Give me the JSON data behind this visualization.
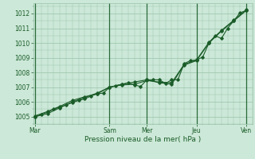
{
  "bg_color": "#cce8d8",
  "plot_bg_color": "#cce8d8",
  "grid_color": "#99c4aa",
  "line_color": "#1a5c28",
  "marker_color": "#1a5c28",
  "xlabel": "Pression niveau de la mer( hPa )",
  "xlabel_color": "#1a5c28",
  "tick_color": "#1a5c28",
  "ylim": [
    1004.5,
    1012.7
  ],
  "yticks": [
    1005,
    1006,
    1007,
    1008,
    1009,
    1010,
    1011,
    1012
  ],
  "xtick_labels": [
    "Mar",
    "Sam",
    "Mer",
    "Jeu",
    "Ven"
  ],
  "xtick_positions": [
    0,
    12,
    18,
    26,
    34
  ],
  "vline_positions": [
    0,
    12,
    18,
    26,
    34
  ],
  "xlim": [
    -0.3,
    35.0
  ],
  "series1_x": [
    0,
    1,
    2,
    3,
    4,
    5,
    6,
    7,
    8,
    9,
    10,
    11,
    12,
    13,
    14,
    15,
    16,
    17,
    18,
    19,
    20,
    21,
    22,
    23,
    24,
    25,
    26,
    27,
    28,
    29,
    30,
    31,
    32,
    33,
    34
  ],
  "series1_y": [
    1005.0,
    1005.15,
    1005.3,
    1005.5,
    1005.65,
    1005.8,
    1005.95,
    1006.1,
    1006.2,
    1006.4,
    1006.55,
    1006.6,
    1007.0,
    1007.1,
    1007.2,
    1007.3,
    1007.15,
    1007.05,
    1007.5,
    1007.5,
    1007.5,
    1007.25,
    1007.5,
    1007.5,
    1008.6,
    1008.8,
    1008.85,
    1009.05,
    1010.0,
    1010.5,
    1010.3,
    1011.0,
    1011.5,
    1012.05,
    1012.2
  ],
  "series2_x": [
    0,
    2,
    4,
    6,
    8,
    10,
    12,
    14,
    16,
    18,
    20,
    22,
    24,
    26,
    28,
    30,
    32,
    34
  ],
  "series2_y": [
    1005.0,
    1005.2,
    1005.6,
    1006.0,
    1006.3,
    1006.6,
    1007.0,
    1007.2,
    1007.35,
    1007.5,
    1007.3,
    1007.2,
    1008.5,
    1008.8,
    1010.0,
    1010.8,
    1011.5,
    1012.2
  ],
  "series3_x": [
    0,
    2,
    4,
    6,
    8,
    10,
    12,
    14,
    16,
    18,
    20,
    22,
    24,
    26,
    28,
    30,
    32,
    34
  ],
  "series3_y": [
    1005.05,
    1005.35,
    1005.7,
    1006.1,
    1006.35,
    1006.55,
    1007.0,
    1007.15,
    1007.2,
    1007.45,
    1007.35,
    1007.3,
    1008.55,
    1008.85,
    1010.05,
    1010.85,
    1011.55,
    1012.25
  ]
}
